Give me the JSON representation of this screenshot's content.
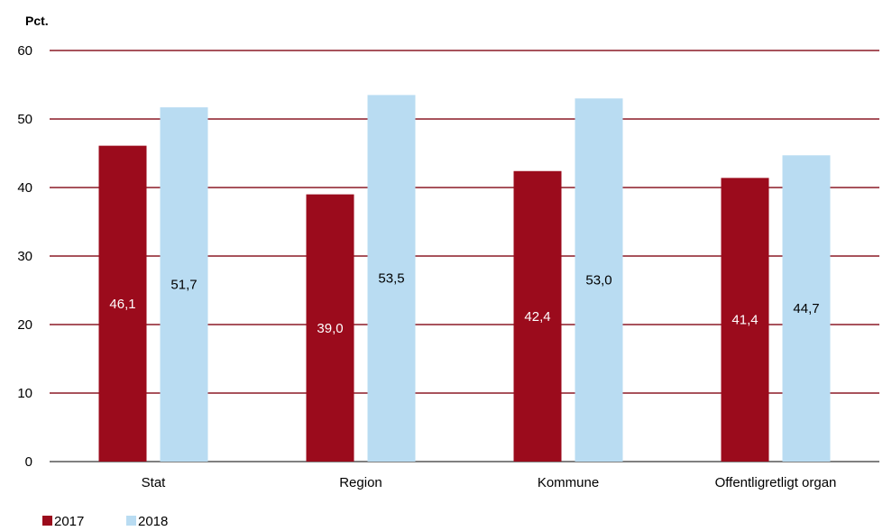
{
  "chart_data": {
    "type": "bar",
    "unit_label": "Pct.",
    "categories": [
      "Stat",
      "Region",
      "Kommune",
      "Offentligretligt organ"
    ],
    "series": [
      {
        "name": "2017",
        "values": [
          46.1,
          39.0,
          42.4,
          41.4
        ],
        "labels": [
          "46,1",
          "39,0",
          "42,4",
          "41,4"
        ],
        "color": "#9B0B1C"
      },
      {
        "name": "2018",
        "values": [
          51.7,
          53.5,
          53.0,
          44.7
        ],
        "labels": [
          "51,7",
          "53,5",
          "53,0",
          "44,7"
        ],
        "color": "#B9DCF2"
      }
    ],
    "ylim": [
      0,
      60
    ],
    "yticks": [
      "0",
      "10",
      "20",
      "30",
      "40",
      "50",
      "60"
    ],
    "grid": true,
    "gridline_color": "#8B1A26",
    "legend_position": "bottom-left"
  }
}
